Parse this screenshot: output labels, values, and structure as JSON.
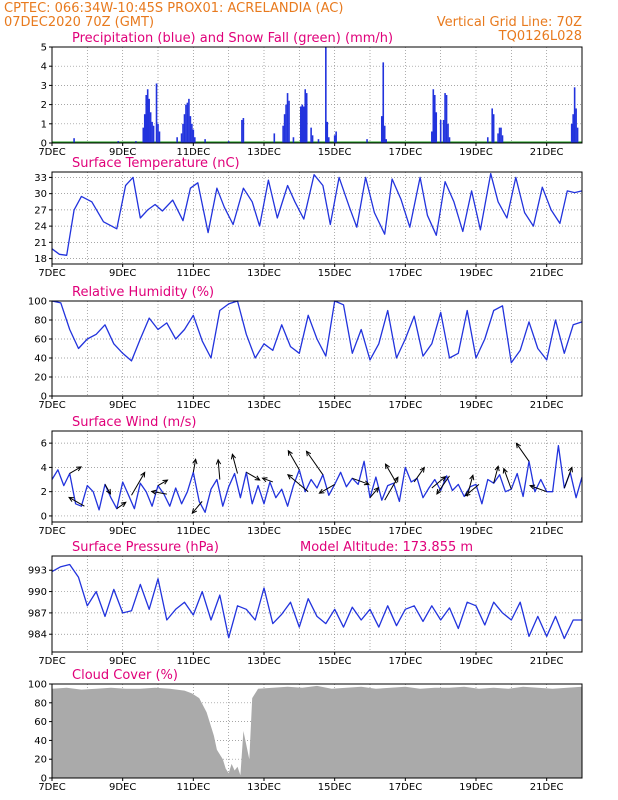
{
  "header": {
    "line1_left": "CPTEC:  066:34W-10:45S  PROX01: ACRELANDIA (AC)",
    "line2_left": "07DEC2020 70Z (GMT)",
    "line2_right": "Vertical Grid Line: 70Z",
    "line3_right": "TQ0126L028"
  },
  "colors": {
    "header": "#e87a1e",
    "panel_title": "#e0007a",
    "line": "#2233dd",
    "precip": "#2233dd",
    "snow": "#1a9a1a",
    "cloud": "#aaaaaa",
    "wind_arrow": "#000000"
  },
  "chart_data": [
    {
      "type": "bar",
      "title": "Precipitation (blue) and Snow Fall (green) (mm/h)",
      "ylim": [
        0,
        5
      ],
      "yticks": [
        "0",
        "1",
        "2",
        "3",
        "4",
        "5"
      ],
      "xticks": [
        "7DEC",
        "9DEC",
        "11DEC",
        "13DEC",
        "15DEC",
        "17DEC",
        "19DEC",
        "21DEC"
      ],
      "x_start_hours": 0,
      "x_end_hours": 360,
      "series": [
        {
          "name": "Precipitation",
          "points": [
            [
              15,
              0.25
            ],
            [
              45,
              0.1
            ],
            [
              57,
              0.1
            ],
            [
              62,
              0.8
            ],
            [
              63,
              1.5
            ],
            [
              64,
              2.5
            ],
            [
              65,
              2.8
            ],
            [
              66,
              2.3
            ],
            [
              67,
              1.6
            ],
            [
              68,
              1.1
            ],
            [
              69,
              0.9
            ],
            [
              71,
              3.1
            ],
            [
              72,
              1.0
            ],
            [
              73,
              0.6
            ],
            [
              85,
              0.3
            ],
            [
              88,
              0.5
            ],
            [
              89,
              1.0
            ],
            [
              90,
              1.5
            ],
            [
              91,
              2.0
            ],
            [
              92,
              2.1
            ],
            [
              93,
              2.3
            ],
            [
              94,
              1.4
            ],
            [
              95,
              1.0
            ],
            [
              96,
              0.7
            ],
            [
              97,
              0.3
            ],
            [
              104,
              0.2
            ],
            [
              120,
              0.1
            ],
            [
              129,
              1.2
            ],
            [
              130,
              1.3
            ],
            [
              151,
              0.5
            ],
            [
              157,
              0.9
            ],
            [
              158,
              1.5
            ],
            [
              159,
              2.0
            ],
            [
              160,
              2.6
            ],
            [
              161,
              2.2
            ],
            [
              164,
              0.3
            ],
            [
              169,
              1.9
            ],
            [
              170,
              2.0
            ],
            [
              171,
              1.9
            ],
            [
              172,
              2.8
            ],
            [
              173,
              2.6
            ],
            [
              176,
              0.8
            ],
            [
              177,
              0.4
            ],
            [
              181,
              0.2
            ],
            [
              186,
              5.0
            ],
            [
              187,
              1.1
            ],
            [
              188,
              0.3
            ],
            [
              192,
              0.4
            ],
            [
              193,
              0.6
            ],
            [
              214,
              0.2
            ],
            [
              224,
              1.4
            ],
            [
              225,
              4.2
            ],
            [
              226,
              0.9
            ],
            [
              227,
              0.2
            ],
            [
              258,
              0.6
            ],
            [
              259,
              2.8
            ],
            [
              260,
              2.5
            ],
            [
              261,
              1.6
            ],
            [
              264,
              1.2
            ],
            [
              266,
              1.2
            ],
            [
              267,
              2.6
            ],
            [
              268,
              2.5
            ],
            [
              269,
              1.0
            ],
            [
              270,
              0.3
            ],
            [
              296,
              0.3
            ],
            [
              299,
              1.8
            ],
            [
              300,
              1.5
            ],
            [
              303,
              0.5
            ],
            [
              304,
              0.8
            ],
            [
              305,
              0.8
            ],
            [
              306,
              0.4
            ],
            [
              353,
              1.0
            ],
            [
              354,
              1.5
            ],
            [
              355,
              2.9
            ],
            [
              356,
              1.8
            ],
            [
              357,
              0.8
            ]
          ]
        },
        {
          "name": "Snow Fall",
          "points": []
        }
      ]
    },
    {
      "type": "line",
      "title": "Surface Temperature (nC)",
      "ylim": [
        17,
        34
      ],
      "yticks": [
        "18",
        "21",
        "24",
        "27",
        "30",
        "33"
      ],
      "xticks": [
        "7DEC",
        "9DEC",
        "11DEC",
        "13DEC",
        "15DEC",
        "17DEC",
        "19DEC",
        "21DEC"
      ],
      "x_start_hours": 0,
      "x_end_hours": 360,
      "x": [
        0,
        5,
        10,
        15,
        20,
        27,
        35,
        44,
        50,
        55,
        60,
        65,
        70,
        75,
        82,
        89,
        94,
        99,
        106,
        112,
        117,
        123,
        130,
        136,
        141,
        147,
        153,
        160,
        165,
        171,
        178,
        184,
        189,
        195,
        202,
        207,
        213,
        219,
        226,
        231,
        237,
        243,
        250,
        255,
        261,
        267,
        273,
        279,
        285,
        291,
        298,
        303,
        309,
        315,
        321,
        327,
        333,
        339,
        345,
        350,
        355,
        360
      ],
      "values": [
        19.8,
        18.8,
        18.6,
        27.0,
        29.5,
        28.5,
        24.8,
        23.5,
        31.5,
        33.0,
        25.5,
        27.0,
        28.0,
        26.8,
        28.8,
        25.0,
        31.0,
        32.0,
        22.8,
        31.0,
        27.5,
        24.3,
        31.0,
        28.5,
        24.0,
        32.5,
        25.5,
        31.5,
        28.5,
        25.3,
        33.5,
        31.5,
        24.3,
        33.0,
        27.5,
        23.8,
        33.0,
        26.5,
        22.5,
        32.7,
        29.0,
        23.8,
        33.0,
        26.0,
        22.3,
        32.2,
        28.5,
        23.0,
        30.5,
        23.3,
        33.7,
        28.5,
        25.5,
        33.0,
        26.5,
        24.0,
        31.2,
        27.0,
        24.5,
        30.5,
        30.2,
        30.5
      ]
    },
    {
      "type": "line",
      "title": "Relative Humidity (%)",
      "ylim": [
        0,
        100
      ],
      "yticks": [
        "0",
        "20",
        "40",
        "60",
        "80",
        "100"
      ],
      "xticks": [
        "7DEC",
        "9DEC",
        "11DEC",
        "13DEC",
        "15DEC",
        "17DEC",
        "19DEC",
        "21DEC"
      ],
      "x_start_hours": 0,
      "x_end_hours": 360,
      "x": [
        0,
        6,
        12,
        18,
        24,
        30,
        36,
        42,
        48,
        54,
        60,
        66,
        72,
        78,
        84,
        90,
        96,
        102,
        108,
        114,
        120,
        126,
        132,
        138,
        144,
        150,
        156,
        162,
        168,
        174,
        180,
        186,
        192,
        198,
        204,
        210,
        216,
        222,
        228,
        234,
        240,
        246,
        252,
        258,
        264,
        270,
        276,
        282,
        288,
        294,
        300,
        306,
        312,
        318,
        324,
        330,
        336,
        342,
        348,
        354,
        360
      ],
      "values": [
        100,
        98,
        70,
        50,
        60,
        65,
        75,
        55,
        45,
        37,
        60,
        82,
        70,
        77,
        60,
        70,
        85,
        58,
        40,
        90,
        97,
        100,
        65,
        40,
        55,
        48,
        75,
        52,
        45,
        85,
        60,
        42,
        100,
        96,
        45,
        70,
        38,
        55,
        90,
        40,
        60,
        84,
        42,
        55,
        88,
        40,
        45,
        90,
        40,
        60,
        90,
        95,
        35,
        48,
        78,
        50,
        38,
        80,
        45,
        75,
        78
      ]
    },
    {
      "type": "line",
      "title": "Surface Wind (m/s)",
      "ylim": [
        -0.5,
        7
      ],
      "yticks": [
        "0",
        "2",
        "4",
        "6"
      ],
      "xticks": [
        "7DEC",
        "9DEC",
        "11DEC",
        "13DEC",
        "15DEC",
        "17DEC",
        "19DEC",
        "21DEC"
      ],
      "x_start_hours": 0,
      "x_end_hours": 360,
      "x": [
        0,
        4,
        8,
        12,
        16,
        20,
        24,
        28,
        32,
        36,
        40,
        44,
        48,
        52,
        56,
        60,
        64,
        68,
        72,
        76,
        80,
        84,
        88,
        92,
        96,
        100,
        104,
        108,
        112,
        116,
        120,
        124,
        128,
        132,
        136,
        140,
        144,
        148,
        152,
        156,
        160,
        164,
        168,
        172,
        176,
        180,
        184,
        188,
        192,
        196,
        200,
        204,
        208,
        212,
        216,
        220,
        224,
        228,
        232,
        236,
        240,
        244,
        248,
        252,
        256,
        260,
        264,
        268,
        272,
        276,
        280,
        284,
        288,
        292,
        296,
        300,
        304,
        308,
        312,
        316,
        320,
        324,
        328,
        332,
        336,
        340,
        344,
        348,
        352,
        356,
        360
      ],
      "values": [
        3.0,
        3.8,
        2.5,
        3.5,
        1.0,
        0.8,
        2.5,
        2.0,
        0.5,
        2.6,
        1.5,
        0.6,
        2.8,
        1.7,
        0.6,
        2.7,
        2.0,
        0.8,
        2.5,
        1.8,
        0.8,
        2.3,
        1.0,
        2.0,
        3.6,
        1.2,
        0.3,
        2.2,
        3.0,
        0.8,
        2.4,
        3.5,
        1.5,
        3.6,
        1.0,
        2.5,
        1.0,
        2.8,
        1.5,
        2.2,
        0.8,
        2.5,
        3.8,
        2.0,
        3.0,
        2.3,
        3.4,
        1.7,
        2.6,
        3.6,
        2.4,
        3.1,
        2.6,
        4.5,
        1.5,
        3.2,
        1.3,
        2.5,
        2.7,
        1.2,
        4.0,
        2.8,
        3.1,
        1.5,
        2.3,
        3.0,
        2.1,
        3.3,
        2.1,
        2.6,
        1.6,
        2.4,
        2.6,
        1.0,
        3.0,
        2.7,
        3.4,
        2.0,
        2.2,
        3.5,
        1.6,
        4.5,
        2.0,
        3.0,
        2.0,
        2.0,
        5.8,
        2.3,
        3.6,
        1.5,
        3.2
      ]
    },
    {
      "type": "line",
      "title": "Surface Pressure (hPa)",
      "subtitle": "Model Altitude: 173.855 m",
      "ylim": [
        981.5,
        995
      ],
      "yticks": [
        "984",
        "987",
        "990",
        "993"
      ],
      "xticks": [
        "7DEC",
        "9DEC",
        "11DEC",
        "13DEC",
        "15DEC",
        "17DEC",
        "19DEC",
        "21DEC"
      ],
      "x_start_hours": 0,
      "x_end_hours": 360,
      "x": [
        0,
        6,
        12,
        18,
        24,
        30,
        36,
        42,
        48,
        54,
        60,
        66,
        72,
        78,
        84,
        90,
        96,
        102,
        108,
        114,
        120,
        126,
        132,
        138,
        144,
        150,
        156,
        162,
        168,
        174,
        180,
        186,
        192,
        198,
        204,
        210,
        216,
        222,
        228,
        234,
        240,
        246,
        252,
        258,
        264,
        270,
        276,
        282,
        288,
        294,
        300,
        306,
        312,
        318,
        324,
        330,
        336,
        342,
        348,
        354,
        360
      ],
      "values": [
        992.8,
        993.5,
        993.8,
        992.0,
        988.0,
        990.0,
        986.5,
        990.3,
        987.0,
        987.3,
        991.0,
        987.5,
        991.8,
        986.0,
        987.5,
        988.5,
        986.7,
        990.0,
        986.0,
        989.5,
        983.5,
        988.0,
        987.5,
        986.0,
        990.5,
        985.5,
        986.8,
        988.5,
        985.0,
        989.0,
        986.5,
        985.5,
        987.5,
        985.0,
        987.8,
        986.0,
        987.5,
        985.0,
        988.0,
        985.2,
        987.5,
        988.0,
        985.8,
        988.0,
        986.0,
        987.7,
        984.8,
        988.5,
        988.0,
        985.3,
        988.5,
        987.0,
        986.0,
        988.5,
        983.7,
        986.5,
        983.7,
        986.5,
        983.4,
        986.0,
        986.0
      ]
    },
    {
      "type": "area",
      "title": "Cloud Cover (%)",
      "ylim": [
        0,
        100
      ],
      "yticks": [
        "0",
        "20",
        "40",
        "60",
        "80",
        "100"
      ],
      "xticks": [
        "7DEC",
        "9DEC",
        "11DEC",
        "13DEC",
        "15DEC",
        "17DEC",
        "19DEC",
        "21DEC"
      ],
      "x_start_hours": 0,
      "x_end_hours": 360,
      "x": [
        0,
        10,
        20,
        30,
        40,
        50,
        60,
        70,
        80,
        90,
        95,
        100,
        105,
        110,
        112,
        116,
        118,
        120,
        122,
        124,
        126,
        128,
        130,
        134,
        136,
        140,
        150,
        160,
        170,
        180,
        190,
        200,
        210,
        220,
        230,
        240,
        250,
        260,
        270,
        280,
        290,
        300,
        310,
        320,
        330,
        340,
        350,
        360
      ],
      "values": [
        95,
        96,
        94,
        95,
        96,
        95,
        95,
        96,
        95,
        93,
        90,
        85,
        70,
        45,
        30,
        20,
        10,
        5,
        15,
        8,
        12,
        3,
        50,
        20,
        85,
        95,
        96,
        97,
        96,
        98,
        95,
        96,
        97,
        95,
        96,
        97,
        95,
        96,
        96,
        97,
        95,
        96,
        95,
        97,
        96,
        95,
        96,
        97
      ]
    }
  ]
}
